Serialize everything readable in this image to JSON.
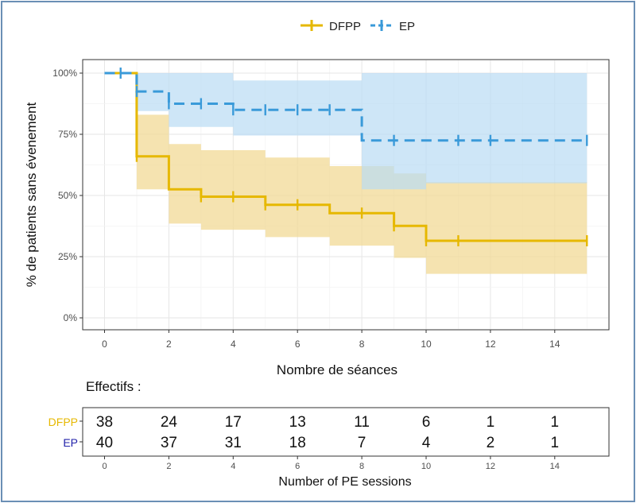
{
  "colors": {
    "dfpp": "#E6B800",
    "dfpp_band": "#F1DA96",
    "ep": "#3A9AD9",
    "ep_band": "#B9DCF3",
    "overlap": "#B5C79E",
    "grid": "#e8e8e8",
    "axis_text": "#4d4d4d",
    "risk_dfpp_label": "#E6B800",
    "risk_ep_label": "#2222AA",
    "frame": "#6a8fb5"
  },
  "chart_data": {
    "type": "line",
    "subtype": "kaplan-meier survival curves with confidence bands and censoring marks",
    "title": "",
    "xlabel": "Nombre de séances",
    "ylabel": "% de patients sans évenement",
    "xlim": [
      -0.7,
      15.7
    ],
    "ylim": [
      -0.05,
      1.05
    ],
    "xticks": [
      0,
      2,
      4,
      6,
      8,
      10,
      12,
      14
    ],
    "yticks": [
      0,
      0.25,
      0.5,
      0.75,
      1.0
    ],
    "ytick_labels": [
      "0%",
      "25%",
      "50%",
      "75%",
      "100%"
    ],
    "grid": true,
    "legend": {
      "position": "top",
      "entries": [
        "DFPP",
        "EP"
      ]
    },
    "series": [
      {
        "name": "DFPP",
        "color": "#E6B800",
        "line": "solid",
        "steps": [
          [
            0,
            1.0
          ],
          [
            1,
            0.66
          ],
          [
            2,
            0.525
          ],
          [
            3,
            0.495
          ],
          [
            5,
            0.462
          ],
          [
            7,
            0.428
          ],
          [
            9,
            0.376
          ],
          [
            10,
            0.315
          ],
          [
            15,
            0.315
          ]
        ],
        "ci_upper": [
          [
            0,
            1.0
          ],
          [
            1,
            0.83
          ],
          [
            2,
            0.71
          ],
          [
            3,
            0.685
          ],
          [
            5,
            0.655
          ],
          [
            7,
            0.62
          ],
          [
            9,
            0.59
          ],
          [
            10,
            0.555
          ],
          [
            15,
            0.555
          ]
        ],
        "ci_lower": [
          [
            0,
            1.0
          ],
          [
            1,
            0.525
          ],
          [
            2,
            0.385
          ],
          [
            3,
            0.36
          ],
          [
            5,
            0.33
          ],
          [
            7,
            0.295
          ],
          [
            9,
            0.245
          ],
          [
            10,
            0.18
          ],
          [
            15,
            0.18
          ]
        ],
        "censor": [
          [
            1,
            0.66
          ],
          [
            3,
            0.495
          ],
          [
            4,
            0.495
          ],
          [
            5,
            0.462
          ],
          [
            6,
            0.462
          ],
          [
            8,
            0.428
          ],
          [
            9,
            0.376
          ],
          [
            10,
            0.315
          ],
          [
            11,
            0.315
          ],
          [
            15,
            0.315
          ]
        ]
      },
      {
        "name": "EP",
        "color": "#3A9AD9",
        "line": "dashed",
        "steps": [
          [
            0,
            1.0
          ],
          [
            1,
            0.925
          ],
          [
            2,
            0.875
          ],
          [
            4,
            0.85
          ],
          [
            8,
            0.725
          ],
          [
            15,
            0.725
          ]
        ],
        "ci_upper": [
          [
            0,
            1.0
          ],
          [
            1,
            1.0
          ],
          [
            2,
            1.0
          ],
          [
            4,
            0.97
          ],
          [
            8,
            1.0
          ],
          [
            15,
            1.0
          ]
        ],
        "ci_lower": [
          [
            0,
            1.0
          ],
          [
            1,
            0.845
          ],
          [
            2,
            0.78
          ],
          [
            4,
            0.745
          ],
          [
            8,
            0.525
          ],
          [
            10,
            0.55
          ],
          [
            15,
            0.55
          ]
        ],
        "censor": [
          [
            0.5,
            1.0
          ],
          [
            1,
            0.925
          ],
          [
            2,
            0.875
          ],
          [
            3,
            0.875
          ],
          [
            4,
            0.85
          ],
          [
            5,
            0.85
          ],
          [
            6,
            0.85
          ],
          [
            7,
            0.85
          ],
          [
            9,
            0.725
          ],
          [
            11,
            0.725
          ],
          [
            12,
            0.725
          ],
          [
            15,
            0.725
          ]
        ]
      }
    ],
    "risk_table": {
      "title": "Effectifs :",
      "xlabel": "Number of PE sessions",
      "times": [
        0,
        2,
        4,
        6,
        8,
        10,
        12,
        14
      ],
      "rows": [
        {
          "label": "DFPP",
          "counts": [
            "38",
            "24",
            "17",
            "13",
            "11",
            "6",
            "1",
            "1"
          ]
        },
        {
          "label": "EP",
          "counts": [
            "40",
            "37",
            "31",
            "18",
            "7",
            "4",
            "2",
            "1"
          ]
        }
      ]
    }
  }
}
